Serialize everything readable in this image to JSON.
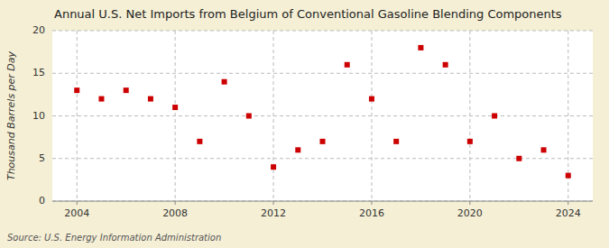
{
  "chart_data": {
    "type": "scatter",
    "title": "Annual U.S. Net Imports from Belgium of Conventional Gasoline Blending Components",
    "ylabel": "Thousand Barrels per Day",
    "source": "Source: U.S. Energy Information Administration",
    "x": [
      2004,
      2005,
      2006,
      2007,
      2008,
      2009,
      2010,
      2011,
      2012,
      2013,
      2014,
      2015,
      2016,
      2017,
      2018,
      2019,
      2020,
      2021,
      2022,
      2023,
      2024
    ],
    "values": [
      13,
      12,
      13,
      12,
      11,
      7,
      14,
      10,
      4,
      6,
      7,
      16,
      12,
      7,
      18,
      16,
      7,
      10,
      5,
      6,
      3
    ],
    "color": "#cc0000",
    "marker": "square",
    "xlim": [
      2003.0,
      2025.0
    ],
    "ylim": [
      0,
      20
    ],
    "xticks": [
      2004,
      2008,
      2012,
      2016,
      2020,
      2024
    ],
    "yticks": [
      0,
      5,
      10,
      15,
      20
    ],
    "grid": true
  }
}
